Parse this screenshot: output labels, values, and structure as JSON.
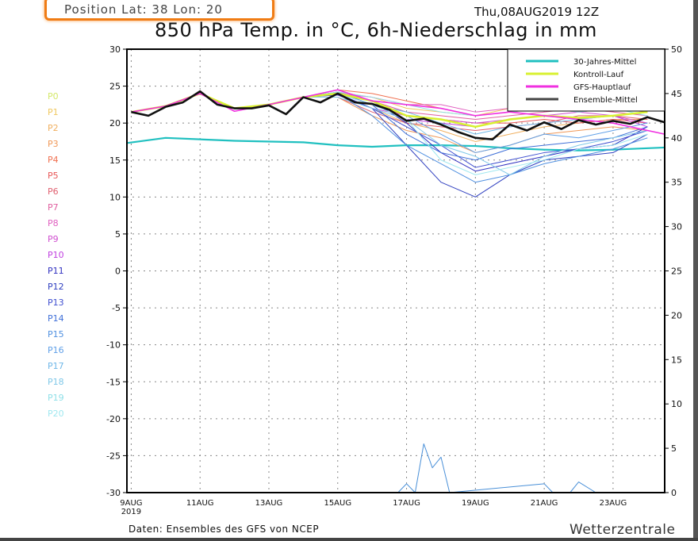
{
  "header": {
    "position_label": "Position  Lat: 38 Lon: 20",
    "run": "Thu,08AUG2019 12Z",
    "title": "850 hPa Temp. in °C, 6h-Niederschlag in mm"
  },
  "footer": {
    "source": "Daten: Ensembles des GFS von NCEP",
    "brand": "Wetterzentrale"
  },
  "chart_data": {
    "type": "line",
    "title": "850 hPa Temp. in °C, 6h-Niederschlag in mm",
    "ylim": [
      -30,
      30
    ],
    "y2lim": [
      0,
      50
    ],
    "yticks": [
      "30",
      "25",
      "20",
      "15",
      "10",
      "5",
      "0",
      "-5",
      "-10",
      "-15",
      "-20",
      "-25",
      "-30"
    ],
    "y2ticks": [
      "50",
      "45",
      "40",
      "35",
      "30",
      "25",
      "20",
      "15",
      "10",
      "5",
      "0"
    ],
    "xticks": [
      {
        "date": "2019-08-09",
        "label": "9AUG",
        "sub": "2019"
      },
      {
        "date": "2019-08-11",
        "label": "11AUG"
      },
      {
        "date": "2019-08-13",
        "label": "13AUG"
      },
      {
        "date": "2019-08-15",
        "label": "15AUG"
      },
      {
        "date": "2019-08-17",
        "label": "17AUG"
      },
      {
        "date": "2019-08-19",
        "label": "19AUG"
      },
      {
        "date": "2019-08-21",
        "label": "21AUG"
      },
      {
        "date": "2019-08-23",
        "label": "23AUG"
      }
    ],
    "xlim": [
      "2019-08-08T21",
      "2019-08-24T12"
    ],
    "grid": true,
    "legend_position": "top-right",
    "legend": [
      {
        "name": "30-Jahres-Mittel",
        "color": "#20c0c0"
      },
      {
        "name": "Kontroll-Lauf",
        "color": "#d8f030"
      },
      {
        "name": "GFS-Hauptlauf",
        "color": "#f030e0"
      },
      {
        "name": "Ensemble-Mittel",
        "color": "#444444"
      }
    ],
    "member_dates": [
      "2019-08-09",
      "2019-08-10",
      "2019-08-11",
      "2019-08-12",
      "2019-08-13",
      "2019-08-14",
      "2019-08-15",
      "2019-08-16",
      "2019-08-17",
      "2019-08-18",
      "2019-08-19",
      "2019-08-20",
      "2019-08-21",
      "2019-08-22",
      "2019-08-23",
      "2019-08-24"
    ],
    "members": [
      {
        "name": "P0",
        "color": "#d4e86a",
        "values": [
          21.5,
          22.3,
          24.0,
          22.0,
          22.5,
          23.5,
          24.0,
          23.0,
          21.0,
          20.5,
          19.5,
          20.5,
          21.0,
          20.7,
          21.0,
          21.5
        ]
      },
      {
        "name": "P1",
        "color": "#f0c860",
        "values": [
          21.5,
          22.3,
          24.0,
          22.0,
          22.5,
          23.5,
          24.2,
          23.5,
          22.0,
          21.5,
          21.0,
          22.0,
          22.5,
          22.0,
          22.5,
          23.0
        ]
      },
      {
        "name": "P2",
        "color": "#f0b060",
        "values": [
          21.5,
          22.3,
          24.0,
          22.0,
          22.5,
          23.5,
          23.8,
          22.0,
          20.0,
          19.0,
          17.5,
          18.5,
          19.5,
          20.0,
          20.5,
          20.5
        ]
      },
      {
        "name": "P3",
        "color": "#f09858",
        "values": [
          21.5,
          22.3,
          24.0,
          22.0,
          22.5,
          23.5,
          23.5,
          21.0,
          19.0,
          18.0,
          16.0,
          17.0,
          18.5,
          19.0,
          19.5,
          19.0
        ]
      },
      {
        "name": "P4",
        "color": "#f07050",
        "values": [
          21.5,
          22.3,
          24.0,
          22.0,
          22.5,
          23.5,
          24.5,
          24.0,
          23.0,
          22.0,
          21.0,
          21.5,
          22.0,
          21.5,
          22.0,
          21.5
        ]
      },
      {
        "name": "P5",
        "color": "#e85858",
        "values": [
          21.5,
          22.3,
          24.0,
          22.0,
          22.5,
          23.5,
          24.0,
          22.5,
          21.0,
          20.5,
          20.0,
          20.0,
          20.5,
          20.0,
          20.5,
          20.0
        ]
      },
      {
        "name": "P6",
        "color": "#e06070",
        "values": [
          21.5,
          22.3,
          24.0,
          22.0,
          22.5,
          23.5,
          23.5,
          21.5,
          20.0,
          19.5,
          19.0,
          19.5,
          20.0,
          21.0,
          21.0,
          20.5
        ]
      },
      {
        "name": "P7",
        "color": "#e060a0",
        "values": [
          21.5,
          22.3,
          24.0,
          22.0,
          22.5,
          23.5,
          24.2,
          23.0,
          21.5,
          21.0,
          20.5,
          21.0,
          21.5,
          22.0,
          21.5,
          21.0
        ]
      },
      {
        "name": "P8",
        "color": "#e060c0",
        "values": [
          21.5,
          22.3,
          24.0,
          22.0,
          22.5,
          23.5,
          24.0,
          23.5,
          22.5,
          22.5,
          21.5,
          22.0,
          22.5,
          22.0,
          22.5,
          22.0
        ]
      },
      {
        "name": "P9",
        "color": "#d050d0",
        "values": [
          21.5,
          22.3,
          24.0,
          22.0,
          22.5,
          23.5,
          23.8,
          22.0,
          21.0,
          20.5,
          20.0,
          20.5,
          21.0,
          21.5,
          21.0,
          20.0
        ]
      },
      {
        "name": "P10",
        "color": "#c040e0",
        "values": [
          21.5,
          22.3,
          24.0,
          22.0,
          22.5,
          23.5,
          24.0,
          22.5,
          20.5,
          20.0,
          19.5,
          20.5,
          21.0,
          20.5,
          21.0,
          19.5
        ]
      },
      {
        "name": "P11",
        "color": "#3030c0",
        "values": [
          21.5,
          22.3,
          24.0,
          22.0,
          22.5,
          23.5,
          24.5,
          23.0,
          20.0,
          16.0,
          13.5,
          14.5,
          15.5,
          16.5,
          17.0,
          19.5
        ]
      },
      {
        "name": "P12",
        "color": "#3040c0",
        "values": [
          21.5,
          22.3,
          24.0,
          22.0,
          22.5,
          23.5,
          24.0,
          22.0,
          17.0,
          12.0,
          10.0,
          13.0,
          15.0,
          15.5,
          16.0,
          18.5
        ]
      },
      {
        "name": "P13",
        "color": "#4050d0",
        "values": [
          21.5,
          22.3,
          24.0,
          22.0,
          22.5,
          23.5,
          23.8,
          22.0,
          19.5,
          17.0,
          14.0,
          15.0,
          16.0,
          16.5,
          17.5,
          19.0
        ]
      },
      {
        "name": "P14",
        "color": "#4070d8",
        "values": [
          21.5,
          22.3,
          24.0,
          22.0,
          22.5,
          23.5,
          24.2,
          22.5,
          18.5,
          16.0,
          15.0,
          16.5,
          17.0,
          17.5,
          18.0,
          19.5
        ]
      },
      {
        "name": "P15",
        "color": "#5090e0",
        "values": [
          21.5,
          22.3,
          24.0,
          22.0,
          22.5,
          23.5,
          24.0,
          21.0,
          17.0,
          14.5,
          12.0,
          13.0,
          14.5,
          15.5,
          16.5,
          18.0
        ]
      },
      {
        "name": "P16",
        "color": "#60a0e8",
        "values": [
          21.5,
          22.3,
          24.0,
          22.0,
          22.5,
          23.5,
          24.5,
          23.0,
          21.0,
          18.5,
          16.0,
          17.0,
          18.5,
          18.0,
          19.0,
          20.0
        ]
      },
      {
        "name": "P17",
        "color": "#70b8e8",
        "values": [
          21.5,
          22.3,
          24.0,
          22.0,
          22.5,
          23.5,
          24.0,
          22.5,
          21.5,
          20.0,
          18.5,
          19.5,
          20.0,
          20.5,
          21.0,
          21.5
        ]
      },
      {
        "name": "P18",
        "color": "#80c8e8",
        "values": [
          21.5,
          22.3,
          24.0,
          22.0,
          22.5,
          23.5,
          23.5,
          22.0,
          20.5,
          17.0,
          15.5,
          13.0,
          15.5,
          17.0,
          18.0,
          19.0
        ]
      },
      {
        "name": "P19",
        "color": "#90e0e8",
        "values": [
          21.5,
          22.3,
          24.0,
          22.0,
          22.5,
          23.5,
          24.2,
          23.5,
          22.5,
          21.5,
          21.0,
          21.5,
          22.0,
          21.5,
          22.0,
          21.0
        ]
      },
      {
        "name": "P20",
        "color": "#a0e8f0",
        "values": [
          21.5,
          22.3,
          24.0,
          22.0,
          22.5,
          23.5,
          24.0,
          22.5,
          20.5,
          15.0,
          13.0,
          14.0,
          15.0,
          16.5,
          17.0,
          18.5
        ]
      }
    ],
    "gfs": {
      "dates": [
        "2019-08-09",
        "2019-08-10",
        "2019-08-11",
        "2019-08-12",
        "2019-08-13",
        "2019-08-14",
        "2019-08-15",
        "2019-08-16",
        "2019-08-17",
        "2019-08-18",
        "2019-08-19",
        "2019-08-20",
        "2019-08-21",
        "2019-08-22",
        "2019-08-23",
        "2019-08-24T12"
      ],
      "values": [
        21.5,
        22.3,
        24.0,
        21.6,
        22.5,
        23.5,
        24.5,
        23.0,
        22.5,
        22.0,
        21.0,
        21.5,
        21.0,
        20.5,
        20.0,
        18.5
      ]
    },
    "ensemble_mean": {
      "dates": [
        "2019-08-09T00",
        "2019-08-09T12",
        "2019-08-10T00",
        "2019-08-10T12",
        "2019-08-11T00",
        "2019-08-11T12",
        "2019-08-12T00",
        "2019-08-12T12",
        "2019-08-13T00",
        "2019-08-13T12",
        "2019-08-14T00",
        "2019-08-14T12",
        "2019-08-15T00",
        "2019-08-15T12",
        "2019-08-16T00",
        "2019-08-16T12",
        "2019-08-17T00",
        "2019-08-17T12",
        "2019-08-18T00",
        "2019-08-18T12",
        "2019-08-19T00",
        "2019-08-19T12",
        "2019-08-20T00",
        "2019-08-20T12",
        "2019-08-21T00",
        "2019-08-21T12",
        "2019-08-22T00",
        "2019-08-22T12",
        "2019-08-23T00",
        "2019-08-23T12",
        "2019-08-24T00",
        "2019-08-24T12"
      ],
      "values": [
        21.5,
        21.0,
        22.2,
        22.8,
        24.3,
        22.5,
        22.0,
        22.0,
        22.4,
        21.2,
        23.5,
        22.8,
        24.0,
        22.8,
        22.6,
        21.8,
        20.3,
        20.6,
        19.8,
        18.8,
        18.0,
        17.8,
        19.8,
        19.0,
        20.1,
        19.2,
        20.4,
        19.8,
        20.3,
        19.9,
        20.8,
        20.1
      ]
    },
    "climatology": {
      "dates": [
        "2019-08-08T21",
        "2019-08-10",
        "2019-08-12",
        "2019-08-14",
        "2019-08-15",
        "2019-08-16",
        "2019-08-17",
        "2019-08-18",
        "2019-08-19",
        "2019-08-20",
        "2019-08-21",
        "2019-08-22",
        "2019-08-23",
        "2019-08-24T12"
      ],
      "values": [
        17.3,
        18.0,
        17.6,
        17.4,
        17.0,
        16.8,
        17.0,
        17.0,
        16.9,
        16.6,
        16.4,
        16.3,
        16.4,
        16.7
      ]
    },
    "precipitation": {
      "unit": "mm",
      "dates": [
        "2019-08-16T18",
        "2019-08-17T00",
        "2019-08-17T06",
        "2019-08-17T12",
        "2019-08-17T18",
        "2019-08-18T00",
        "2019-08-18T06",
        "2019-08-21T00",
        "2019-08-21T06",
        "2019-08-21T18",
        "2019-08-22T00",
        "2019-08-22T12"
      ],
      "values": [
        0,
        1.0,
        0,
        5.5,
        2.8,
        4.0,
        0,
        1.0,
        0,
        0,
        1.2,
        0
      ]
    }
  }
}
